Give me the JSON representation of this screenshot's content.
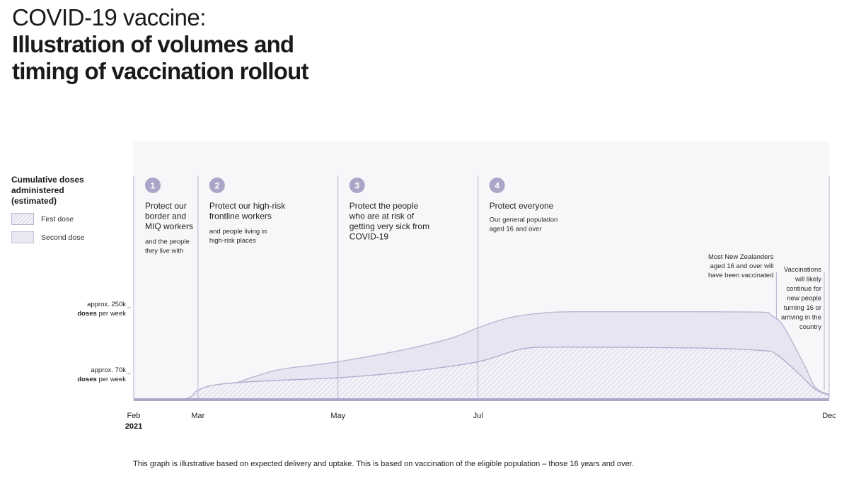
{
  "title": {
    "line1": "COVID-19 vaccine:",
    "line2": "Illustration of volumes and",
    "line3": "timing of vaccination rollout"
  },
  "legend": {
    "title_lines": [
      "Cumulative doses",
      "administered",
      "(estimated)"
    ],
    "first_dose": "First dose",
    "second_dose": "Second dose"
  },
  "footnote": "This graph is illustrative based on expected delivery and uptake. This is based on vaccination of the eligible population – those 16 years and over.",
  "colors": {
    "panel_bg": "#f7f7f9",
    "second_dose": "#e7e5f1",
    "second_dose_line": "#bcb6d4",
    "first_dose_hatch": "#d5d1e5",
    "first_dose_line": "#b3acce",
    "baseline": "#aea7cb",
    "divider": "#b5b0cc",
    "badge": "#aba5c7"
  },
  "chart_data": {
    "type": "area",
    "x_ticks": [
      {
        "label": "Feb",
        "sub": "2021",
        "x": "2021-02-01"
      },
      {
        "label": "Mar",
        "x": "2021-03-01"
      },
      {
        "label": "May",
        "x": "2021-05-01"
      },
      {
        "label": "Jul",
        "x": "2021-07-01"
      },
      {
        "label": "Dec",
        "x": "2021-12-01"
      }
    ],
    "y_ticks": [
      {
        "value": 70000,
        "line1": "approx. 70k",
        "line2_bold": "doses",
        "line2": " per week"
      },
      {
        "value": 250000,
        "line1": "approx. 250k",
        "line2_bold": "doses",
        "line2": " per week"
      }
    ],
    "ylim": [
      0,
      420000
    ],
    "series": [
      {
        "name": "Second dose",
        "points": [
          [
            "2021-02-01",
            0
          ],
          [
            "2021-02-23",
            0
          ],
          [
            "2021-03-01",
            4000
          ],
          [
            "2021-03-10",
            25000
          ],
          [
            "2021-03-24",
            58000
          ],
          [
            "2021-04-07",
            82000
          ],
          [
            "2021-05-01",
            102000
          ],
          [
            "2021-06-01",
            138000
          ],
          [
            "2021-06-20",
            168000
          ],
          [
            "2021-07-01",
            195000
          ],
          [
            "2021-07-15",
            223000
          ],
          [
            "2021-08-01",
            237000
          ],
          [
            "2021-08-15",
            239000
          ],
          [
            "2021-10-01",
            239000
          ],
          [
            "2021-11-01",
            238000
          ],
          [
            "2021-11-06",
            228000
          ],
          [
            "2021-11-11",
            200000
          ],
          [
            "2021-11-20",
            95000
          ],
          [
            "2021-11-25",
            32000
          ],
          [
            "2021-12-01",
            12000
          ]
        ]
      },
      {
        "name": "First dose",
        "points": [
          [
            "2021-02-01",
            0
          ],
          [
            "2021-02-23",
            0
          ],
          [
            "2021-03-01",
            24000
          ],
          [
            "2021-03-10",
            40000
          ],
          [
            "2021-04-01",
            50000
          ],
          [
            "2021-05-01",
            58000
          ],
          [
            "2021-06-01",
            75000
          ],
          [
            "2021-07-01",
            102000
          ],
          [
            "2021-07-20",
            137000
          ],
          [
            "2021-08-05",
            142000
          ],
          [
            "2021-10-01",
            140000
          ],
          [
            "2021-11-01",
            133000
          ],
          [
            "2021-11-08",
            122000
          ],
          [
            "2021-11-18",
            68000
          ],
          [
            "2021-11-25",
            26000
          ],
          [
            "2021-12-01",
            10000
          ]
        ]
      }
    ],
    "phases": [
      {
        "num": "1",
        "start": "2021-02-01",
        "heading": [
          "Protect our",
          "border and",
          "MIQ workers"
        ],
        "detail": [
          "and the people",
          "they live with"
        ]
      },
      {
        "num": "2",
        "start": "2021-03-01",
        "heading": [
          "Protect our high-risk",
          "frontline workers"
        ],
        "detail": [
          "and people living in",
          "high-risk places"
        ]
      },
      {
        "num": "3",
        "start": "2021-05-01",
        "heading": [
          "Protect the people",
          "who are at risk of",
          "getting very sick from",
          "COVID-19"
        ],
        "detail": []
      },
      {
        "num": "4",
        "start": "2021-07-01",
        "heading": [
          "Protect everyone"
        ],
        "detail": [
          "Our general population",
          "aged 16 and over"
        ]
      }
    ],
    "annotations": [
      {
        "x": "2021-11-08",
        "lines": [
          "Most New Zealanders",
          "aged 16 and over will",
          "have been vaccinated"
        ]
      },
      {
        "x": "2021-11-30",
        "lines": [
          "Vaccinations",
          "will likely",
          "continue for",
          "new people",
          "turning 16 or",
          "arriving in the",
          "country"
        ]
      }
    ]
  }
}
